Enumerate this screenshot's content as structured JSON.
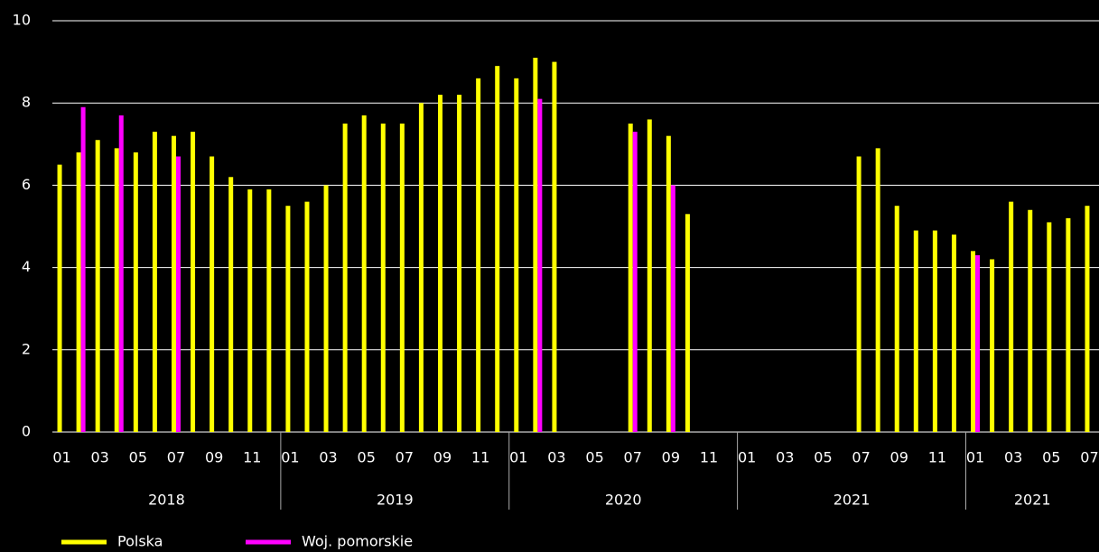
{
  "chart_data": {
    "type": "bar",
    "categories": [
      "01",
      null,
      "03",
      null,
      "05",
      null,
      "07",
      null,
      "09",
      null,
      "11",
      null,
      "01",
      null,
      "03",
      null,
      "05",
      null,
      "07",
      null,
      "09",
      null,
      "11",
      null,
      "01",
      null,
      "03",
      null,
      "05",
      null,
      "07",
      null,
      "09",
      null,
      "11",
      null,
      "01",
      null,
      "03",
      null,
      "05",
      null,
      "07",
      null,
      "09",
      null,
      "11",
      null,
      "01",
      null,
      "03",
      null,
      "05",
      null,
      "07"
    ],
    "group_labels": [
      "2018",
      "2019",
      "2020",
      "2021",
      "2021"
    ],
    "series": [
      {
        "name": "Polska",
        "color": "#ffff00",
        "values": [
          6.5,
          6.8,
          7.1,
          6.9,
          6.8,
          7.3,
          7.2,
          7.3,
          6.7,
          6.2,
          5.9,
          5.9,
          5.5,
          5.6,
          6.0,
          7.5,
          7.7,
          7.5,
          7.5,
          8.0,
          8.2,
          8.2,
          8.6,
          8.9,
          8.6,
          9.1,
          9.0,
          null,
          null,
          null,
          7.5,
          7.6,
          7.2,
          5.3,
          null,
          null,
          null,
          null,
          null,
          null,
          null,
          null,
          6.7,
          6.9,
          5.5,
          4.9,
          4.9,
          4.8,
          4.4,
          4.2,
          5.6,
          5.4,
          5.1,
          5.2,
          5.5
        ]
      },
      {
        "name": "Woj. pomorskie",
        "color": "#ff00ff",
        "values": [
          null,
          7.9,
          null,
          7.7,
          null,
          null,
          6.7,
          null,
          null,
          null,
          null,
          null,
          null,
          null,
          null,
          null,
          null,
          null,
          null,
          null,
          null,
          null,
          null,
          null,
          null,
          8.1,
          null,
          null,
          null,
          null,
          7.3,
          null,
          6.0,
          null,
          null,
          null,
          null,
          null,
          null,
          null,
          null,
          null,
          null,
          null,
          null,
          null,
          null,
          null,
          4.3,
          null,
          null,
          null,
          null,
          null,
          null
        ]
      }
    ],
    "ylim": [
      0,
      10
    ],
    "yticks": [
      0,
      2,
      4,
      6,
      8,
      10
    ],
    "grid": true,
    "legend": "bottom-left"
  }
}
